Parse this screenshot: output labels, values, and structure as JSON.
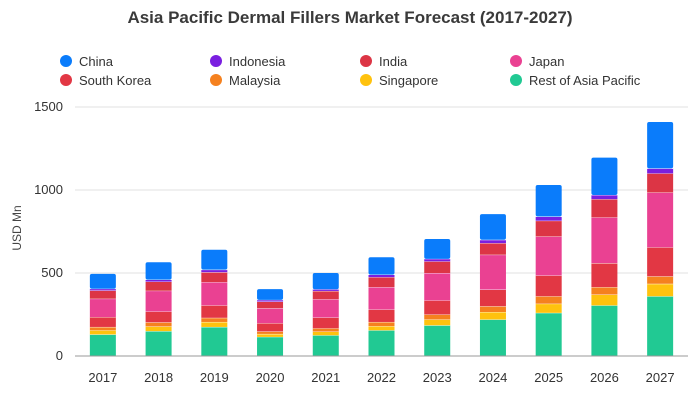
{
  "title": "Asia Pacific Dermal Fillers Market Forecast (2017-2027)",
  "chart_data": {
    "type": "bar",
    "stacked": true,
    "title": "Asia Pacific Dermal Fillers Market Forecast (2017-2027)",
    "xlabel": "",
    "ylabel": "USD Mn",
    "ylim": [
      0,
      1500
    ],
    "yticks": [
      0,
      500,
      1000,
      1500
    ],
    "grid": true,
    "legend_position": "top",
    "categories": [
      "2017",
      "2018",
      "2019",
      "2020",
      "2021",
      "2022",
      "2023",
      "2024",
      "2025",
      "2026",
      "2027"
    ],
    "series": [
      {
        "name": "Rest of Asia Pacific",
        "color": "#21c993",
        "values": [
          130,
          150,
          175,
          115,
          125,
          155,
          185,
          220,
          260,
          305,
          360
        ]
      },
      {
        "name": "Singapore",
        "color": "#ffc20e",
        "values": [
          25,
          28,
          30,
          18,
          22,
          25,
          35,
          45,
          55,
          65,
          75
        ]
      },
      {
        "name": "Malaysia",
        "color": "#f5811f",
        "values": [
          20,
          25,
          25,
          15,
          20,
          25,
          30,
          35,
          45,
          45,
          45
        ]
      },
      {
        "name": "South Korea",
        "color": "#e23744",
        "values": [
          60,
          65,
          75,
          50,
          65,
          75,
          85,
          100,
          125,
          145,
          175
        ]
      },
      {
        "name": "Japan",
        "color": "#ea4192",
        "values": [
          110,
          125,
          140,
          90,
          110,
          135,
          165,
          210,
          235,
          275,
          330
        ]
      },
      {
        "name": "India",
        "color": "#dc3545",
        "values": [
          50,
          55,
          60,
          40,
          50,
          60,
          70,
          70,
          95,
          110,
          115
        ]
      },
      {
        "name": "Indonesia",
        "color": "#7a1fe0",
        "values": [
          10,
          12,
          15,
          10,
          10,
          15,
          15,
          20,
          25,
          25,
          30
        ]
      },
      {
        "name": "China",
        "color": "#0a7cfb",
        "values": [
          90,
          105,
          120,
          65,
          98,
          105,
          120,
          155,
          190,
          225,
          280
        ]
      }
    ]
  },
  "legend": [
    {
      "name": "China",
      "color": "#0a7cfb"
    },
    {
      "name": "Indonesia",
      "color": "#7a1fe0"
    },
    {
      "name": "India",
      "color": "#dc3545"
    },
    {
      "name": "Japan",
      "color": "#ea4192"
    },
    {
      "name": "South Korea",
      "color": "#e23744"
    },
    {
      "name": "Malaysia",
      "color": "#f5811f"
    },
    {
      "name": "Singapore",
      "color": "#ffc20e"
    },
    {
      "name": "Rest of Asia Pacific",
      "color": "#21c993"
    }
  ]
}
